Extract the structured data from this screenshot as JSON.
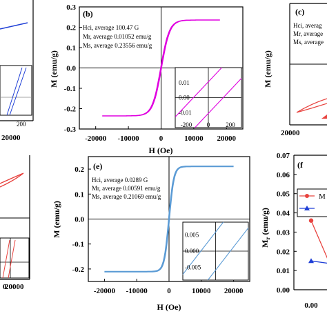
{
  "colors": {
    "blue": "#1f3fd6",
    "magenta": "#e000e0",
    "red": "#e8433f",
    "steel_blue": "#5b9bd5",
    "axis": "#000000"
  },
  "chart_data": [
    {
      "type": "line",
      "panel": "a",
      "visible": "partial",
      "series": [
        {
          "x": [
            8000,
            20000
          ],
          "y": [
            0.18,
            0.24
          ]
        }
      ],
      "xticks": [
        "20000"
      ],
      "inset": {
        "xticks": [
          "200"
        ],
        "series": [
          {
            "x": [
              -150,
              150
            ],
            "y": [
              -0.01,
              0.01
            ]
          }
        ]
      }
    },
    {
      "type": "line",
      "panel": "b",
      "label": "(b)",
      "annotations": [
        "Hci, average 100.47 G",
        "Mr, average 0.01052 emu/g",
        "Ms, average 0.23556 emu/g"
      ],
      "xlabel": "H (Oe)",
      "ylabel": "M (emu/g)",
      "xlim": [
        -25000,
        25000
      ],
      "ylim": [
        -0.3,
        0.3
      ],
      "xticks": [
        -20000,
        -10000,
        0,
        10000,
        20000
      ],
      "yticks": [
        -0.3,
        -0.2,
        -0.1,
        0.0,
        0.1,
        0.2,
        0.3
      ],
      "ytick_labels": [
        "-0.3",
        "-0.2",
        "-0.1",
        "0.0",
        "0.1",
        "0.2",
        "0.3"
      ],
      "Hc": 100.47,
      "Mr": 0.01052,
      "Ms": 0.23556,
      "hmax": 18000,
      "inset": {
        "xlim": [
          -300,
          300
        ],
        "ylim": [
          -0.02,
          0.02
        ],
        "xticks": [
          -200,
          0,
          200
        ],
        "yticks": [
          0.01,
          0.0,
          -0.01
        ],
        "ytick_labels": [
          "0.01",
          "0.00",
          "-0.01"
        ]
      }
    },
    {
      "type": "line",
      "panel": "c",
      "label": "(c)",
      "visible": "partial",
      "annotations": [
        "Hci, averag",
        "Mr, average",
        "Ms, average"
      ],
      "ylabel": "M (emu/g)",
      "xticks": [
        "20000"
      ]
    },
    {
      "type": "line",
      "panel": "d",
      "visible": "partial",
      "xticks": [
        "0",
        "20000"
      ]
    },
    {
      "type": "line",
      "panel": "e",
      "label": "(e)",
      "annotations": [
        "Hci, average 0.0289 G",
        "Mr, average 0.00591 emu/g",
        "Ms, average 0.21069 emu/g"
      ],
      "xlabel": "H (Oe)",
      "ylabel": "M (emu/g)",
      "xlim": [
        -25000,
        25000
      ],
      "ylim": [
        -0.25,
        0.25
      ],
      "xticks": [
        -20000,
        -10000,
        0,
        10000,
        20000
      ],
      "yticks": [
        -0.2,
        -0.1,
        0.0,
        0.1,
        0.2
      ],
      "ytick_labels": [
        "-0.2",
        "-0.1",
        "0.0",
        "0.1",
        "0.2"
      ],
      "Hc": 0.0289,
      "Mr": 0.00591,
      "Ms": 0.21069,
      "hmax": 20000,
      "inset": {
        "xlim": [
          -12,
          12
        ],
        "ylim": [
          -0.009,
          0.009
        ],
        "xticks": [],
        "yticks": [
          0.005,
          0.0,
          -0.005
        ],
        "ytick_labels": [
          "0.005",
          "0.000",
          "-0.005"
        ]
      }
    },
    {
      "type": "scatter",
      "panel": "f",
      "label": "(f",
      "visible": "partial",
      "ylabel": "M",
      "ylabel_sub": "r",
      "ylabel_unit": " (emu/g)",
      "ylim": [
        0.0,
        0.07
      ],
      "yticks": [
        0.0,
        0.01,
        0.02,
        0.03,
        0.04,
        0.05,
        0.06,
        0.07
      ],
      "ytick_labels": [
        "0.00",
        "0.01",
        "0.02",
        "0.03",
        "0.04",
        "0.05",
        "0.06",
        "0.07"
      ],
      "xticks": [
        "0.00"
      ],
      "legend": [
        "M",
        ""
      ],
      "series": [
        {
          "color": "red",
          "marker": "circle",
          "points": [
            [
              0.0,
              0.036
            ],
            [
              0.5,
              0.011
            ]
          ]
        },
        {
          "color": "blue",
          "marker": "triangle",
          "points": [
            [
              0.0,
              0.015
            ],
            [
              0.5,
              0.0135
            ]
          ]
        }
      ]
    }
  ]
}
